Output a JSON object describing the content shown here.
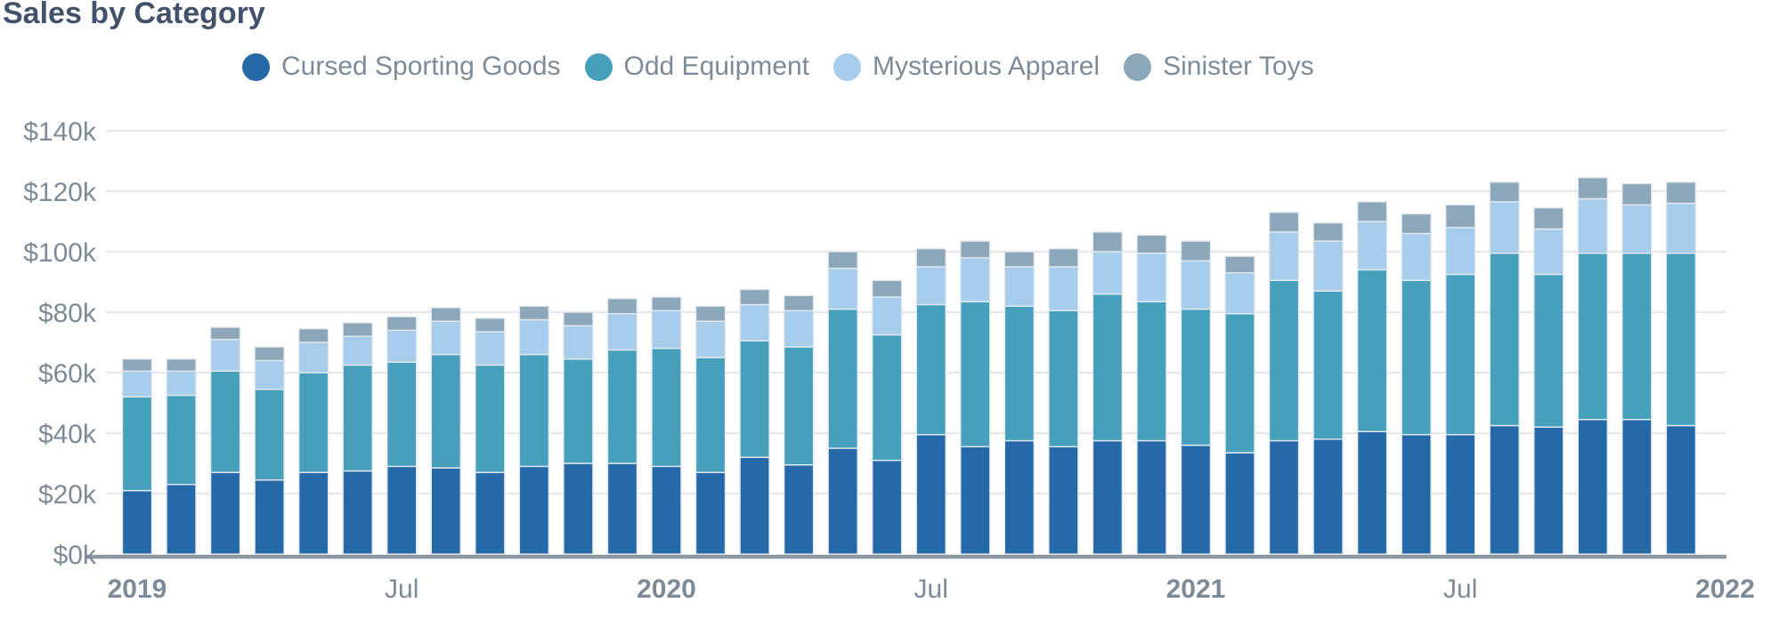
{
  "title": "Sales by Category",
  "legend": {
    "items": [
      {
        "label": "Cursed Sporting Goods",
        "color": "#2569a8"
      },
      {
        "label": "Odd Equipment",
        "color": "#46a0bb"
      },
      {
        "label": "Mysterious Apparel",
        "color": "#a7cdec"
      },
      {
        "label": "Sinister Toys",
        "color": "#8da7ba"
      }
    ]
  },
  "y_axis": {
    "ticks": [
      {
        "label": "$0k",
        "value": 0
      },
      {
        "label": "$20k",
        "value": 20
      },
      {
        "label": "$40k",
        "value": 40
      },
      {
        "label": "$60k",
        "value": 60
      },
      {
        "label": "$80k",
        "value": 80
      },
      {
        "label": "$100k",
        "value": 100
      },
      {
        "label": "$120k",
        "value": 120
      },
      {
        "label": "$140k",
        "value": 140
      }
    ]
  },
  "x_axis": {
    "ticks": [
      {
        "label": "2019",
        "month_index": 0,
        "bold": true
      },
      {
        "label": "Jul",
        "month_index": 6,
        "bold": false
      },
      {
        "label": "2020",
        "month_index": 12,
        "bold": true
      },
      {
        "label": "Jul",
        "month_index": 18,
        "bold": false
      },
      {
        "label": "2021",
        "month_index": 24,
        "bold": true
      },
      {
        "label": "Jul",
        "month_index": 30,
        "bold": false
      },
      {
        "label": "2022",
        "month_index": 36,
        "bold": true
      }
    ]
  },
  "chart_data": {
    "type": "bar",
    "stacked": true,
    "unit": "USD thousands",
    "title": "Sales by Category",
    "ylim": [
      0,
      140
    ],
    "grid": true,
    "legend_position": "top",
    "categories": [
      "Jan 2019",
      "Feb 2019",
      "Mar 2019",
      "Apr 2019",
      "May 2019",
      "Jun 2019",
      "Jul 2019",
      "Aug 2019",
      "Sep 2019",
      "Oct 2019",
      "Nov 2019",
      "Dec 2019",
      "Jan 2020",
      "Feb 2020",
      "Mar 2020",
      "Apr 2020",
      "May 2020",
      "Jun 2020",
      "Jul 2020",
      "Aug 2020",
      "Sep 2020",
      "Oct 2020",
      "Nov 2020",
      "Dec 2020",
      "Jan 2021",
      "Feb 2021",
      "Mar 2021",
      "Apr 2021",
      "May 2021",
      "Jun 2021",
      "Jul 2021",
      "Aug 2021",
      "Sep 2021",
      "Oct 2021",
      "Nov 2021",
      "Dec 2021"
    ],
    "series": [
      {
        "name": "Cursed Sporting Goods",
        "color": "#2569a8",
        "values": [
          21,
          23,
          27,
          24.5,
          27,
          27.5,
          29,
          28.5,
          27,
          29,
          30,
          30,
          29,
          27,
          32,
          29.5,
          35,
          31,
          39.5,
          35.5,
          37.5,
          35.5,
          37.5,
          37.5,
          36,
          33.5,
          37.5,
          38,
          40.5,
          39.5,
          39.5,
          42.5,
          42,
          44.5,
          44.5,
          42.5
        ]
      },
      {
        "name": "Odd Equipment",
        "color": "#46a0bb",
        "values": [
          31,
          29.5,
          33.5,
          30,
          33,
          35,
          34.5,
          37.5,
          35.5,
          37,
          34.5,
          37.5,
          39,
          38,
          38.5,
          39,
          46,
          41.5,
          43,
          48,
          44.5,
          45,
          48.5,
          46,
          45,
          46,
          53,
          49,
          53.5,
          51,
          53,
          57,
          50.5,
          55,
          55,
          57
        ]
      },
      {
        "name": "Mysterious Apparel",
        "color": "#a7cdec",
        "values": [
          8.5,
          8,
          10.5,
          9.5,
          10,
          9.5,
          10.5,
          11,
          11,
          11.5,
          11,
          12,
          12.5,
          12,
          12,
          12,
          13.5,
          12.5,
          12.5,
          14.5,
          13,
          14.5,
          14,
          16,
          16,
          13.5,
          16,
          16.5,
          16,
          15.5,
          15.5,
          17,
          15,
          18,
          16,
          16.5
        ]
      },
      {
        "name": "Sinister Toys",
        "color": "#8da7ba",
        "values": [
          4,
          4,
          4,
          4.5,
          4.5,
          4.5,
          4.5,
          4.5,
          4.5,
          4.5,
          4.5,
          5,
          4.5,
          5,
          5,
          5,
          5.5,
          5.5,
          6,
          5.5,
          5,
          6,
          6.5,
          6,
          6.5,
          5.5,
          6.5,
          6,
          6.5,
          6.5,
          7.5,
          6.5,
          7,
          7,
          7,
          7
        ]
      }
    ]
  },
  "style": {
    "title_color": "#42526a",
    "axis_text_color": "#7d8b98",
    "gridline_color": "#e6e8ec",
    "axis_line_color": "#8a97a3",
    "bar_stroke_color": "#e3e9ee"
  }
}
